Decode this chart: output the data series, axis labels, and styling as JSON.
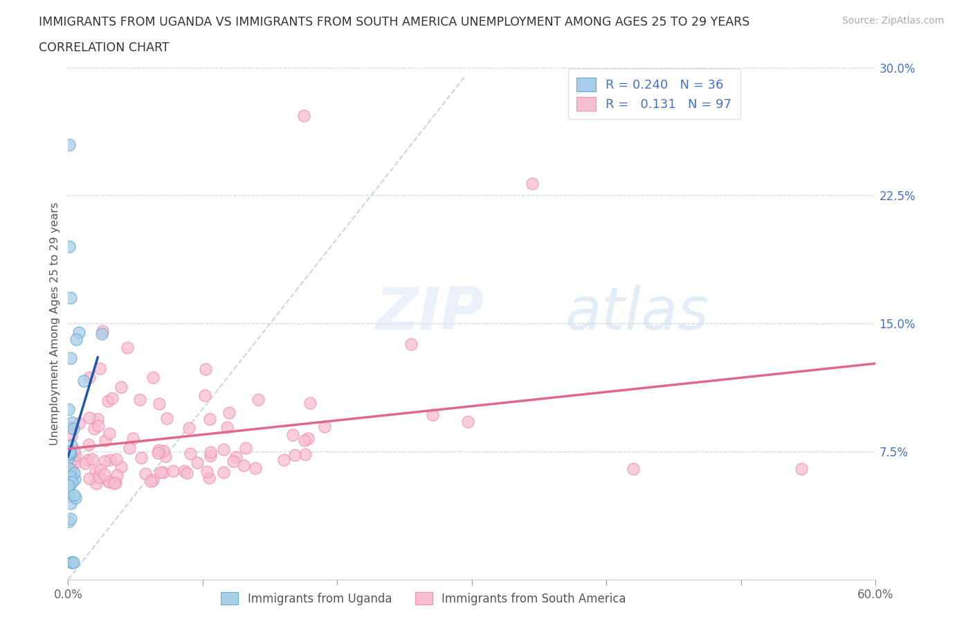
{
  "title_line1": "IMMIGRANTS FROM UGANDA VS IMMIGRANTS FROM SOUTH AMERICA UNEMPLOYMENT AMONG AGES 25 TO 29 YEARS",
  "title_line2": "CORRELATION CHART",
  "source_text": "Source: ZipAtlas.com",
  "ylabel": "Unemployment Among Ages 25 to 29 years",
  "xlim": [
    0.0,
    0.6
  ],
  "ylim": [
    0.0,
    0.3
  ],
  "yticks": [
    0.0,
    0.075,
    0.15,
    0.225,
    0.3
  ],
  "yticklabels": [
    "",
    "7.5%",
    "15.0%",
    "22.5%",
    "30.0%"
  ],
  "uganda_color": "#a8cfe8",
  "uganda_edge_color": "#6aaad4",
  "sa_color": "#f7bdd0",
  "sa_edge_color": "#f090b0",
  "uganda_trend_color": "#2255aa",
  "sa_trend_color": "#e06888",
  "diag_color": "#b8cce4",
  "uganda_R": 0.24,
  "uganda_N": 36,
  "sa_R": 0.131,
  "sa_N": 97,
  "watermark_zip": "ZIP",
  "watermark_atlas": "atlas",
  "watermark_color_zip": "#dce8f4",
  "watermark_color_atlas": "#c8ddf0",
  "legend_label_uganda": "Immigrants from Uganda",
  "legend_label_sa": "Immigrants from South America",
  "ytick_color": "#4472c4",
  "title_color": "#333333",
  "grid_color": "#c8d4e4",
  "source_color": "#aaaaaa"
}
